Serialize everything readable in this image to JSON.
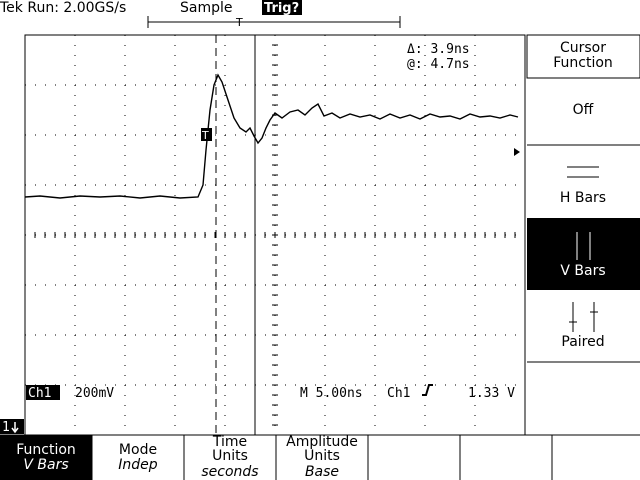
{
  "header": {
    "title": "Tek Run: 2.00GS/s",
    "acquisition": "Sample",
    "trigger_status": "Trig?"
  },
  "readout": {
    "delta": "Δ: 3.9ns",
    "at": "@: 4.7ns"
  },
  "markers": {
    "trigger_point": "T",
    "trigger_position": "T",
    "channel_ref": "1"
  },
  "status": {
    "channel": "Ch1",
    "scale": "200mV",
    "timebase": "M 5.00ns",
    "trigger_source": "Ch1",
    "trigger_level": "1.33 V"
  },
  "side_menu": {
    "title": "Cursor Function",
    "items": [
      "Off",
      "H Bars",
      "V Bars",
      "Paired"
    ]
  },
  "bottom_menu": [
    {
      "label": "Function",
      "value": "V Bars"
    },
    {
      "label": "Mode",
      "value": "Indep"
    },
    {
      "label": "Time Units",
      "value": "seconds"
    },
    {
      "label": "Amplitude Units",
      "value": "Base"
    }
  ]
}
